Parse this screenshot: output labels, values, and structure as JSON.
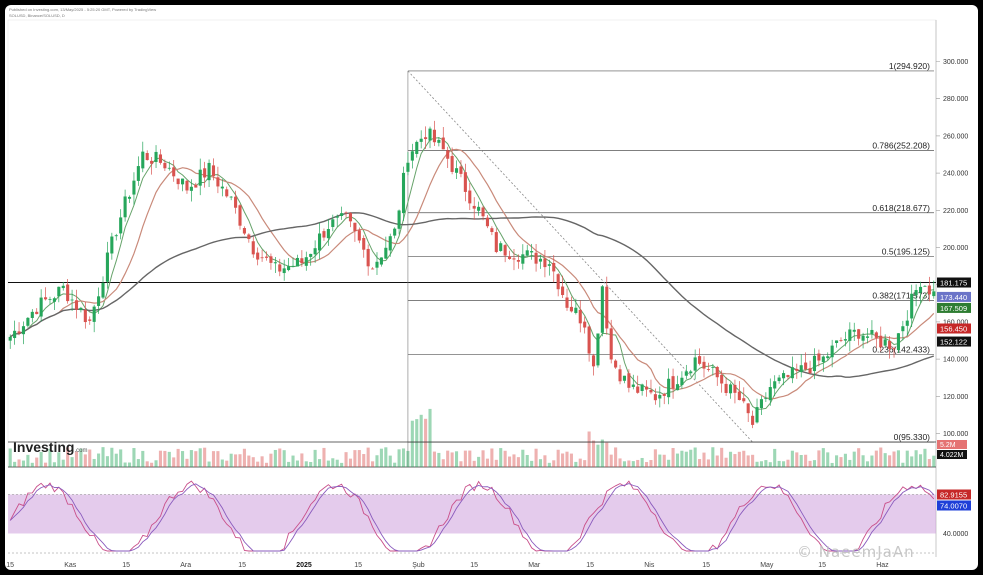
{
  "header": {
    "line1": "Published on Investing.com, 13/May/2025 - 5:25:20 GMT, Powered by TradingView",
    "line2": "SOLUSD, Binance/SOLUSD, D"
  },
  "logo": {
    "text": "Investing",
    "suffix": ".com"
  },
  "watermark": "© NaeemJaAn",
  "chart_data": {
    "type": "candlestick",
    "ylim": [
      95,
      315
    ],
    "y_ticks": [
      "300.000",
      "280.000",
      "260.000",
      "240.000",
      "220.000",
      "200.000",
      "180.000",
      "160.000",
      "140.000",
      "120.000",
      "100.000"
    ],
    "x_ticks": [
      "15",
      "Kas",
      "15",
      "Ara",
      "15",
      "2025",
      "15",
      "Şub",
      "15",
      "Mar",
      "15",
      "Nis",
      "15",
      "May",
      "15",
      "Haz"
    ],
    "fib_levels": [
      {
        "label": "1(294.920)",
        "value": 294.92
      },
      {
        "label": "0.786(252.208)",
        "value": 252.208
      },
      {
        "label": "0.618(218.677)",
        "value": 218.677
      },
      {
        "label": "0.5(195.125)",
        "value": 195.125
      },
      {
        "label": "0.382(171.573)",
        "value": 171.573
      },
      {
        "label": "0.236(142.433)",
        "value": 142.433
      },
      {
        "label": "0(95.330)",
        "value": 95.33
      }
    ],
    "horizontal_level": 181.175,
    "price_badges": [
      {
        "label": "181.175",
        "value": 181.175,
        "color": "#111111"
      },
      {
        "label": "173.440",
        "value": 173.44,
        "color": "#6b74c8"
      },
      {
        "label": "167.509",
        "value": 167.509,
        "color": "#2e7d32"
      },
      {
        "label": "156.450",
        "value": 156.45,
        "color": "#c62828"
      },
      {
        "label": "152.122",
        "value": 152.122,
        "color": "#111111"
      }
    ],
    "volume_badges": [
      {
        "label": "5.2M",
        "color": "#e57373"
      },
      {
        "label": "4.022M",
        "color": "#111111"
      }
    ],
    "stoch": {
      "ylim": [
        20,
        100
      ],
      "y_ticks": [
        "40.0000"
      ],
      "badges": [
        {
          "label": "82.9155",
          "color": "#c62828"
        },
        {
          "label": "74.0070",
          "color": "#1e3fd8"
        }
      ],
      "band": [
        40,
        80
      ]
    },
    "anchors": [
      [
        0,
        152
      ],
      [
        6,
        168
      ],
      [
        12,
        178
      ],
      [
        18,
        160
      ],
      [
        24,
        210
      ],
      [
        30,
        250
      ],
      [
        35,
        245
      ],
      [
        40,
        232
      ],
      [
        45,
        242
      ],
      [
        50,
        225
      ],
      [
        55,
        200
      ],
      [
        60,
        188
      ],
      [
        66,
        192
      ],
      [
        72,
        212
      ],
      [
        76,
        215
      ],
      [
        82,
        190
      ],
      [
        87,
        208
      ],
      [
        90,
        250
      ],
      [
        94,
        262
      ],
      [
        98,
        252
      ],
      [
        102,
        236
      ],
      [
        106,
        220
      ],
      [
        110,
        200
      ],
      [
        116,
        196
      ],
      [
        122,
        193
      ],
      [
        126,
        170
      ],
      [
        130,
        160
      ],
      [
        132,
        135
      ],
      [
        134,
        180
      ],
      [
        136,
        140
      ],
      [
        140,
        125
      ],
      [
        146,
        120
      ],
      [
        150,
        128
      ],
      [
        155,
        140
      ],
      [
        160,
        130
      ],
      [
        165,
        118
      ],
      [
        168,
        105
      ],
      [
        172,
        125
      ],
      [
        176,
        130
      ],
      [
        180,
        135
      ],
      [
        184,
        140
      ],
      [
        188,
        150
      ],
      [
        192,
        155
      ],
      [
        196,
        150
      ],
      [
        200,
        148
      ],
      [
        203,
        165
      ],
      [
        206,
        183
      ],
      [
        209,
        175
      ]
    ]
  }
}
